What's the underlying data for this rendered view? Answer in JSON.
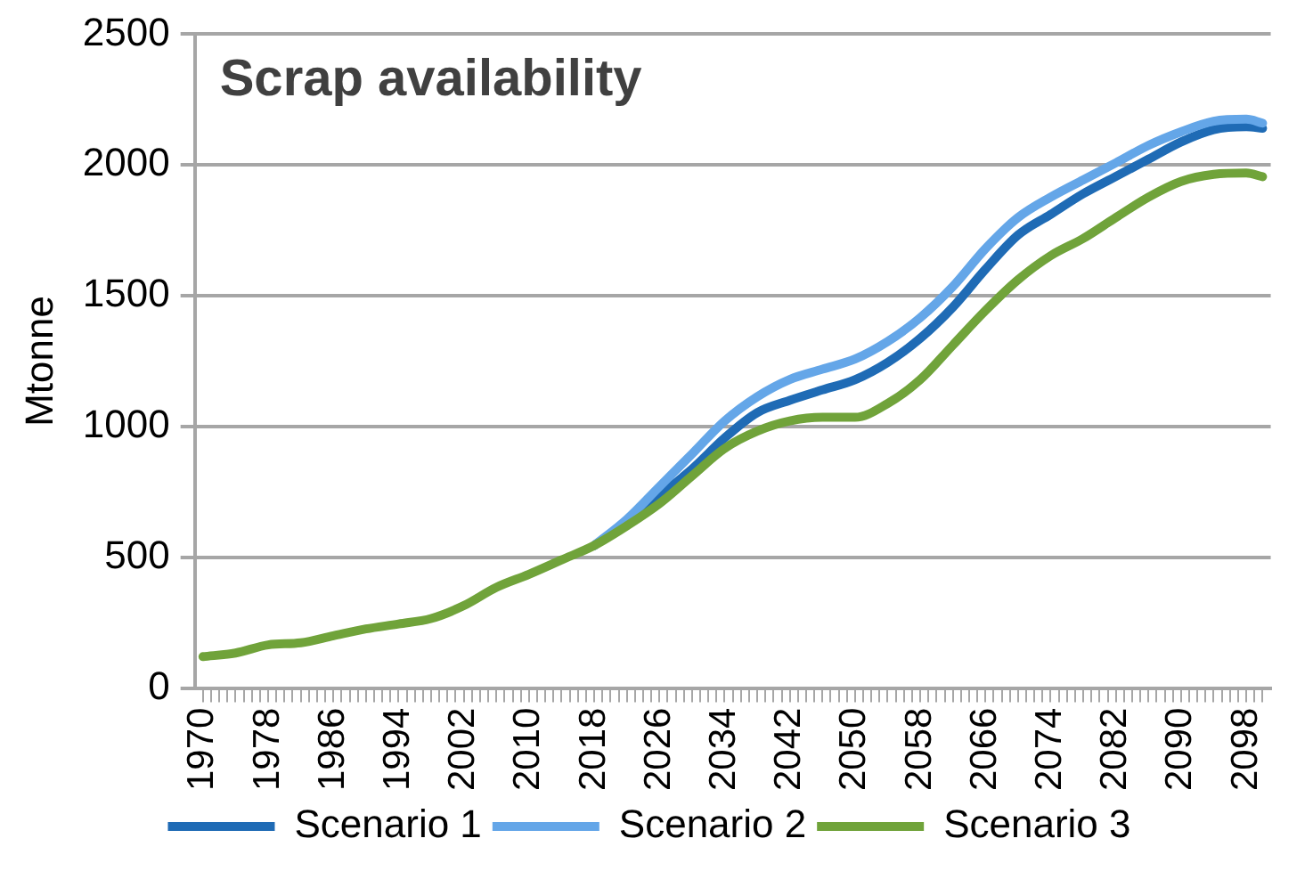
{
  "chart_data": {
    "type": "line",
    "title": "Scrap availability",
    "ylabel": "Mtonne",
    "xlim": [
      1969,
      2101
    ],
    "xticks": [
      1970,
      {
        "value": 1971,
        "label": null
      },
      {
        "value": 1972,
        "label": null
      },
      {
        "value": 1973,
        "label": null
      },
      {
        "value": 1974,
        "label": null
      },
      {
        "value": 1975,
        "label": null
      },
      {
        "value": 1976,
        "label": null
      },
      {
        "value": 1977,
        "label": null
      },
      1978,
      {
        "value": 1979,
        "label": null
      },
      {
        "value": 1980,
        "label": null
      },
      {
        "value": 1981,
        "label": null
      },
      {
        "value": 1982,
        "label": null
      },
      {
        "value": 1983,
        "label": null
      },
      {
        "value": 1984,
        "label": null
      },
      {
        "value": 1985,
        "label": null
      },
      1986,
      {
        "value": 1987,
        "label": null
      },
      {
        "value": 1988,
        "label": null
      },
      {
        "value": 1989,
        "label": null
      },
      {
        "value": 1990,
        "label": null
      },
      {
        "value": 1991,
        "label": null
      },
      {
        "value": 1992,
        "label": null
      },
      {
        "value": 1993,
        "label": null
      },
      1994,
      {
        "value": 1995,
        "label": null
      },
      {
        "value": 1996,
        "label": null
      },
      {
        "value": 1997,
        "label": null
      },
      {
        "value": 1998,
        "label": null
      },
      {
        "value": 1999,
        "label": null
      },
      {
        "value": 2000,
        "label": null
      },
      {
        "value": 2001,
        "label": null
      },
      2002,
      {
        "value": 2003,
        "label": null
      },
      {
        "value": 2004,
        "label": null
      },
      {
        "value": 2005,
        "label": null
      },
      {
        "value": 2006,
        "label": null
      },
      {
        "value": 2007,
        "label": null
      },
      {
        "value": 2008,
        "label": null
      },
      {
        "value": 2009,
        "label": null
      },
      2010,
      {
        "value": 2011,
        "label": null
      },
      {
        "value": 2012,
        "label": null
      },
      {
        "value": 2013,
        "label": null
      },
      {
        "value": 2014,
        "label": null
      },
      {
        "value": 2015,
        "label": null
      },
      {
        "value": 2016,
        "label": null
      },
      {
        "value": 2017,
        "label": null
      },
      2018,
      {
        "value": 2019,
        "label": null
      },
      {
        "value": 2020,
        "label": null
      },
      {
        "value": 2021,
        "label": null
      },
      {
        "value": 2022,
        "label": null
      },
      {
        "value": 2023,
        "label": null
      },
      {
        "value": 2024,
        "label": null
      },
      {
        "value": 2025,
        "label": null
      },
      2026,
      {
        "value": 2027,
        "label": null
      },
      {
        "value": 2028,
        "label": null
      },
      {
        "value": 2029,
        "label": null
      },
      {
        "value": 2030,
        "label": null
      },
      {
        "value": 2031,
        "label": null
      },
      {
        "value": 2032,
        "label": null
      },
      {
        "value": 2033,
        "label": null
      },
      2034,
      {
        "value": 2035,
        "label": null
      },
      {
        "value": 2036,
        "label": null
      },
      {
        "value": 2037,
        "label": null
      },
      {
        "value": 2038,
        "label": null
      },
      {
        "value": 2039,
        "label": null
      },
      {
        "value": 2040,
        "label": null
      },
      {
        "value": 2041,
        "label": null
      },
      2042,
      {
        "value": 2043,
        "label": null
      },
      {
        "value": 2044,
        "label": null
      },
      {
        "value": 2045,
        "label": null
      },
      {
        "value": 2046,
        "label": null
      },
      {
        "value": 2047,
        "label": null
      },
      {
        "value": 2048,
        "label": null
      },
      {
        "value": 2049,
        "label": null
      },
      2050,
      {
        "value": 2051,
        "label": null
      },
      {
        "value": 2052,
        "label": null
      },
      {
        "value": 2053,
        "label": null
      },
      {
        "value": 2054,
        "label": null
      },
      {
        "value": 2055,
        "label": null
      },
      {
        "value": 2056,
        "label": null
      },
      {
        "value": 2057,
        "label": null
      },
      2058,
      {
        "value": 2059,
        "label": null
      },
      {
        "value": 2060,
        "label": null
      },
      {
        "value": 2061,
        "label": null
      },
      {
        "value": 2062,
        "label": null
      },
      {
        "value": 2063,
        "label": null
      },
      {
        "value": 2064,
        "label": null
      },
      {
        "value": 2065,
        "label": null
      },
      2066,
      {
        "value": 2067,
        "label": null
      },
      {
        "value": 2068,
        "label": null
      },
      {
        "value": 2069,
        "label": null
      },
      {
        "value": 2070,
        "label": null
      },
      {
        "value": 2071,
        "label": null
      },
      {
        "value": 2072,
        "label": null
      },
      {
        "value": 2073,
        "label": null
      },
      2074,
      {
        "value": 2075,
        "label": null
      },
      {
        "value": 2076,
        "label": null
      },
      {
        "value": 2077,
        "label": null
      },
      {
        "value": 2078,
        "label": null
      },
      {
        "value": 2079,
        "label": null
      },
      {
        "value": 2080,
        "label": null
      },
      {
        "value": 2081,
        "label": null
      },
      2082,
      {
        "value": 2083,
        "label": null
      },
      {
        "value": 2084,
        "label": null
      },
      {
        "value": 2085,
        "label": null
      },
      {
        "value": 2086,
        "label": null
      },
      {
        "value": 2087,
        "label": null
      },
      {
        "value": 2088,
        "label": null
      },
      {
        "value": 2089,
        "label": null
      },
      2090,
      {
        "value": 2091,
        "label": null
      },
      {
        "value": 2092,
        "label": null
      },
      {
        "value": 2093,
        "label": null
      },
      {
        "value": 2094,
        "label": null
      },
      {
        "value": 2095,
        "label": null
      },
      {
        "value": 2096,
        "label": null
      },
      {
        "value": 2097,
        "label": null
      },
      2098,
      {
        "value": 2099,
        "label": null
      },
      {
        "value": 2100,
        "label": null
      }
    ],
    "ylim": [
      0,
      2500
    ],
    "yticks": [
      0,
      500,
      1000,
      1500,
      2000,
      2500
    ],
    "grid": "y",
    "legend": "bottom",
    "marker": "none",
    "line_style": "solid",
    "series": [
      {
        "name": "Scenario 1",
        "color": "#1f6bb5",
        "x": [
          2018,
          2022,
          2026,
          2030,
          2034,
          2038,
          2042,
          2046,
          2050,
          2054,
          2058,
          2062,
          2066,
          2070,
          2074,
          2078,
          2082,
          2086,
          2090,
          2094,
          2098,
          2100
        ],
        "values": [
          545,
          630,
          735,
          837,
          956,
          1053,
          1100,
          1140,
          1179,
          1245,
          1337,
          1456,
          1601,
          1732,
          1811,
          1890,
          1956,
          2022,
          2088,
          2135,
          2146,
          2140
        ]
      },
      {
        "name": "Scenario 2",
        "color": "#64a6e8",
        "x": [
          2018,
          2022,
          2026,
          2030,
          2034,
          2038,
          2042,
          2046,
          2050,
          2054,
          2058,
          2062,
          2066,
          2070,
          2074,
          2078,
          2082,
          2086,
          2090,
          2094,
          2098,
          2100
        ],
        "values": [
          545,
          645,
          770,
          895,
          1021,
          1114,
          1180,
          1219,
          1258,
          1325,
          1416,
          1535,
          1680,
          1799,
          1877,
          1943,
          2008,
          2075,
          2127,
          2167,
          2175,
          2160
        ]
      },
      {
        "name": "Scenario 3",
        "color": "#70a33a",
        "x": [
          1970,
          1974,
          1978,
          1982,
          1986,
          1990,
          1994,
          1998,
          2002,
          2006,
          2010,
          2014,
          2018,
          2022,
          2026,
          2030,
          2034,
          2038,
          2042,
          2046,
          2050,
          2054,
          2058,
          2062,
          2066,
          2070,
          2074,
          2078,
          2082,
          2086,
          2090,
          2094,
          2098,
          2100
        ],
        "values": [
          120,
          134,
          165,
          173,
          200,
          226,
          245,
          266,
          315,
          385,
          435,
          490,
          545,
          620,
          705,
          811,
          916,
          982,
          1021,
          1035,
          1035,
          1088,
          1179,
          1311,
          1443,
          1561,
          1653,
          1719,
          1799,
          1877,
          1937,
          1964,
          1969,
          1955
        ]
      }
    ]
  }
}
